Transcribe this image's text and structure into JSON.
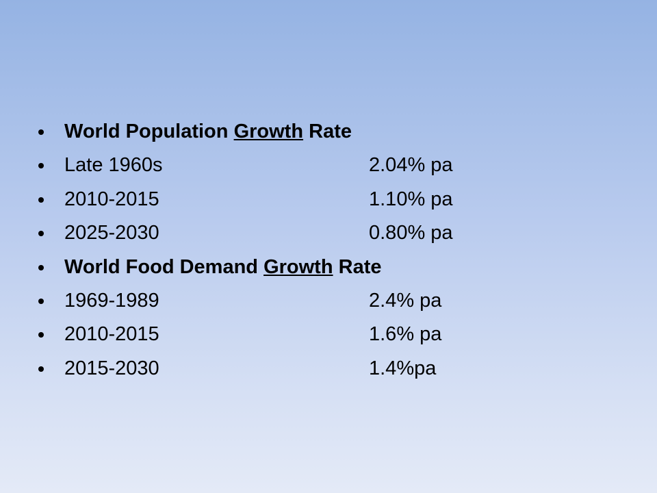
{
  "slide": {
    "rows": [
      {
        "type": "heading",
        "before": "World Population ",
        "underlined": "Growth",
        "after": " Rate"
      },
      {
        "type": "item",
        "label": "Late 1960s",
        "value": "2.04% pa"
      },
      {
        "type": "item",
        "label": "2010-2015",
        "value": "1.10% pa"
      },
      {
        "type": "item",
        "label": "2025-2030",
        "value": "0.80% pa"
      },
      {
        "type": "heading",
        "before": "World Food Demand ",
        "underlined": "Growth",
        "after": " Rate"
      },
      {
        "type": "item",
        "label": "1969-1989",
        "value": "2.4% pa"
      },
      {
        "type": "item",
        "label": "2010-2015",
        "value": "1.6% pa"
      },
      {
        "type": "item",
        "label": "2015-2030",
        "value": "1.4%pa"
      }
    ]
  }
}
